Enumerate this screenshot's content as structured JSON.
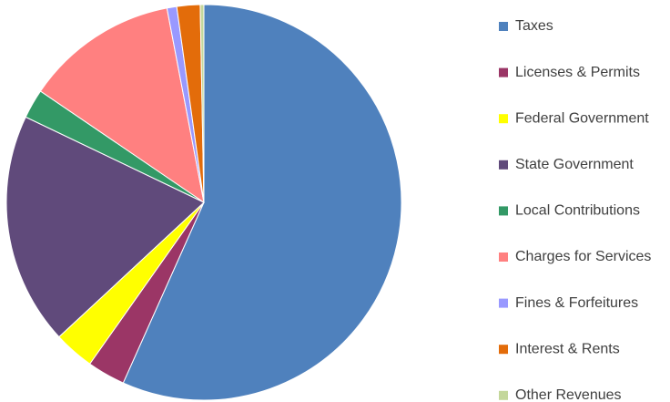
{
  "chart_data": {
    "type": "pie",
    "categories": [
      "Taxes",
      "Licenses & Permits",
      "Federal Government",
      "State Government",
      "Local Contributions",
      "Charges for Services",
      "Fines & Forfeitures",
      "Interest & Rents",
      "Other Revenues"
    ],
    "values": [
      56.7,
      3.1,
      3.3,
      19.0,
      2.4,
      12.5,
      0.8,
      1.9,
      0.3
    ],
    "colors": [
      "#4f81bd",
      "#9b3666",
      "#ffff00",
      "#604a7b",
      "#339966",
      "#ff8080",
      "#9999ff",
      "#e36c0a",
      "#c4d79b"
    ],
    "legend": "right"
  }
}
